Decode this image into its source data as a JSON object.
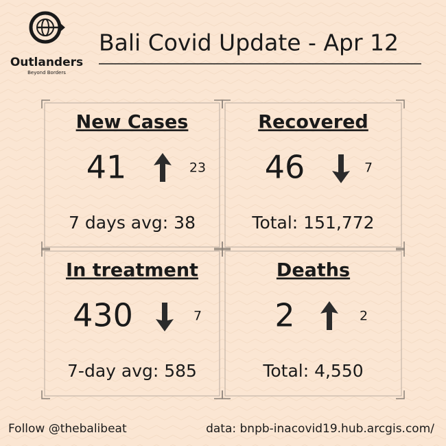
{
  "logo": {
    "name": "Outlanders",
    "tagline": "Beyond Borders"
  },
  "title": "Bali Covid Update - Apr 12",
  "cards": [
    {
      "heading": "New Cases",
      "value": 41,
      "change": 23,
      "direction": "up",
      "footer": "7 days avg: 38"
    },
    {
      "heading": "Recovered",
      "value": 46,
      "change": 7,
      "direction": "down",
      "footer": "Total: 151,772"
    },
    {
      "heading": "In treatment",
      "value": 430,
      "change": 7,
      "direction": "down",
      "footer": "7-day avg: 585"
    },
    {
      "heading": "Deaths",
      "value": 2,
      "change": 2,
      "direction": "up",
      "footer": "Total: 4,550"
    }
  ],
  "footer": {
    "left": "Follow @thebalibeat",
    "right": "data: bnpb-inacovid19.hub.arcgis.com/"
  }
}
